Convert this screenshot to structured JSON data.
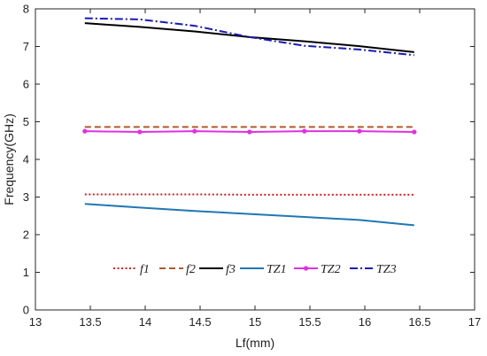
{
  "chart_data": {
    "type": "line",
    "xlabel": "Lf(mm)",
    "ylabel": "Frequency(GHz)",
    "xlim": [
      13,
      17
    ],
    "ylim": [
      0,
      8
    ],
    "xticks": [
      13,
      13.5,
      14,
      14.5,
      15,
      15.5,
      16,
      16.5,
      17
    ],
    "yticks": [
      0,
      1,
      2,
      3,
      4,
      5,
      6,
      7,
      8
    ],
    "grid": false,
    "legend_position": "bottom, inside plot area",
    "x": [
      13.45,
      13.95,
      14.45,
      14.95,
      15.45,
      15.95,
      16.45
    ],
    "series": [
      {
        "name": "f1",
        "values": [
          3.07,
          3.07,
          3.07,
          3.06,
          3.06,
          3.06,
          3.06
        ],
        "color": "#d42020",
        "style": "dotted"
      },
      {
        "name": "f2",
        "values": [
          4.86,
          4.86,
          4.86,
          4.86,
          4.86,
          4.86,
          4.86
        ],
        "color": "#b05a2c",
        "style": "dashed"
      },
      {
        "name": "f3",
        "values": [
          7.62,
          7.52,
          7.4,
          7.25,
          7.14,
          7.01,
          6.85
        ],
        "color": "#000000",
        "style": "solid"
      },
      {
        "name": "TZ1",
        "values": [
          2.82,
          2.72,
          2.63,
          2.55,
          2.47,
          2.39,
          2.25
        ],
        "color": "#1f78b4",
        "style": "solid"
      },
      {
        "name": "TZ2",
        "values": [
          4.75,
          4.73,
          4.75,
          4.73,
          4.75,
          4.75,
          4.73
        ],
        "color": "#e030e0",
        "style": "solid-marker"
      },
      {
        "name": "TZ3",
        "values": [
          7.75,
          7.72,
          7.55,
          7.25,
          7.02,
          6.92,
          6.77
        ],
        "color": "#1a1ab8",
        "style": "dashdot"
      }
    ]
  }
}
